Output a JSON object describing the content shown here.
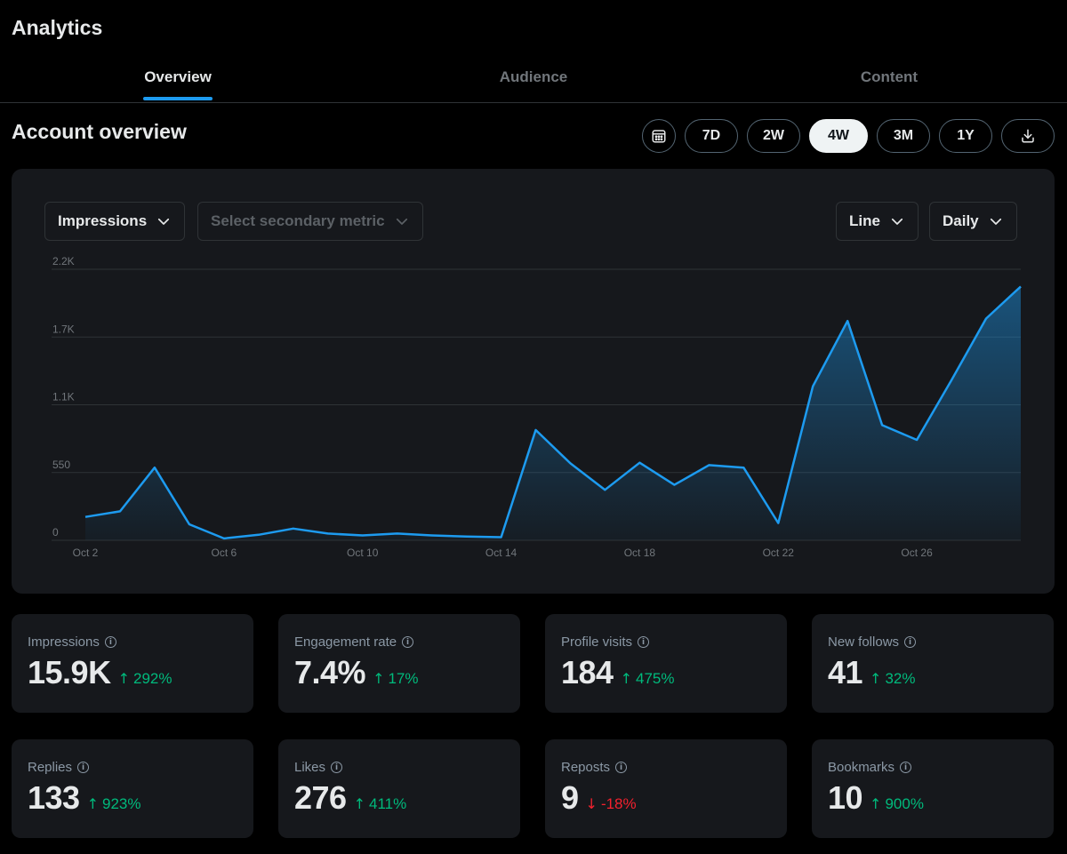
{
  "header": {
    "title": "Analytics"
  },
  "tabs": [
    {
      "label": "Overview",
      "active": true
    },
    {
      "label": "Audience",
      "active": false
    },
    {
      "label": "Content",
      "active": false
    }
  ],
  "overview": {
    "title": "Account overview",
    "ranges": [
      "7D",
      "2W",
      "4W",
      "3M",
      "1Y"
    ],
    "selected_range": "4W",
    "calendar_icon": "calendar-icon",
    "download_icon": "download-icon"
  },
  "controls": {
    "primary_metric": "Impressions",
    "secondary_metric_placeholder": "Select secondary metric",
    "chart_type": "Line",
    "granularity": "Daily"
  },
  "chart_data": {
    "type": "area",
    "title": "",
    "xlabel": "",
    "ylabel": "",
    "y_ticks": [
      "0",
      "550",
      "1.1K",
      "1.7K",
      "2.2K"
    ],
    "y_tick_values": [
      0,
      550,
      1100,
      1650,
      2200
    ],
    "ylim": [
      0,
      2200
    ],
    "x_ticks": [
      "Oct 2",
      "Oct 6",
      "Oct 10",
      "Oct 14",
      "Oct 18",
      "Oct 22",
      "Oct 26"
    ],
    "x_tick_days": [
      2,
      6,
      10,
      14,
      18,
      22,
      26
    ],
    "xlim": [
      2,
      29
    ],
    "grid": true,
    "series": [
      {
        "x": [
          2,
          3,
          4,
          5,
          6,
          7,
          8,
          9,
          10,
          11,
          12,
          13,
          14,
          15,
          16,
          17,
          18,
          19,
          20,
          21,
          22,
          23,
          24,
          25,
          26,
          27,
          28,
          29
        ],
        "values": [
          190,
          235,
          590,
          130,
          15,
          45,
          95,
          55,
          40,
          55,
          40,
          30,
          25,
          895,
          625,
          410,
          630,
          450,
          610,
          590,
          140,
          1250,
          1780,
          935,
          815,
          1300,
          1800,
          2060
        ],
        "color": "#1d9bf0"
      }
    ]
  },
  "stats": [
    {
      "label": "Impressions",
      "value": "15.9K",
      "change": "292%",
      "direction": "up"
    },
    {
      "label": "Engagement rate",
      "value": "7.4%",
      "change": "17%",
      "direction": "up"
    },
    {
      "label": "Profile visits",
      "value": "184",
      "change": "475%",
      "direction": "up"
    },
    {
      "label": "New follows",
      "value": "41",
      "change": "32%",
      "direction": "up"
    },
    {
      "label": "Replies",
      "value": "133",
      "change": "923%",
      "direction": "up"
    },
    {
      "label": "Likes",
      "value": "276",
      "change": "411%",
      "direction": "up"
    },
    {
      "label": "Reposts",
      "value": "9",
      "change": "-18%",
      "direction": "down"
    },
    {
      "label": "Bookmarks",
      "value": "10",
      "change": "900%",
      "direction": "up"
    }
  ],
  "colors": {
    "accent": "#1d9bf0",
    "up": "#00ba7c",
    "down": "#f4212e",
    "card": "#16181c"
  }
}
